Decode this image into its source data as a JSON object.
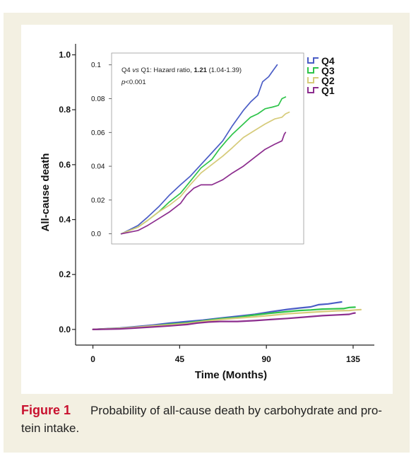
{
  "colors": {
    "background": "#f3f0e2",
    "panel": "#ffffff",
    "caption_label": "#c8102e"
  },
  "chart_data": {
    "type": "line",
    "xlabel": "Time (Months)",
    "ylabel": "All-cause death",
    "xlim": [
      -9,
      146
    ],
    "ylim": [
      -0.057,
      1.04
    ],
    "xticks": [
      0,
      45,
      90,
      135
    ],
    "xtick_labels": [
      "0",
      "45",
      "90",
      "135"
    ],
    "yticks": [
      0,
      0.2,
      0.4,
      0.6,
      0.8,
      1.0
    ],
    "ytick_labels": [
      "0.0",
      "0.2",
      "0.4",
      "0.6",
      "0.8",
      "1.0"
    ],
    "grid": false,
    "legend": "top-right",
    "series": [
      {
        "name": "Q4",
        "color": "#4b5dc6",
        "x": [
          0,
          14,
          22,
          31,
          40,
          49,
          57,
          66,
          75,
          84,
          92,
          101,
          107,
          113,
          117,
          122,
          126,
          129
        ],
        "y": [
          0,
          0.005,
          0.01,
          0.016,
          0.023,
          0.029,
          0.034,
          0.041,
          0.048,
          0.055,
          0.064,
          0.073,
          0.078,
          0.082,
          0.09,
          0.093,
          0.097,
          0.1
        ]
      },
      {
        "name": "Q3",
        "color": "#2ec44a",
        "x": [
          0,
          14,
          22,
          31,
          40,
          49,
          57,
          66,
          75,
          81,
          87,
          92,
          101,
          107,
          113,
          119,
          125,
          130,
          133,
          136
        ],
        "y": [
          0,
          0.004,
          0.008,
          0.013,
          0.019,
          0.024,
          0.031,
          0.039,
          0.044,
          0.05,
          0.055,
          0.059,
          0.065,
          0.069,
          0.071,
          0.074,
          0.075,
          0.076,
          0.08,
          0.081
        ]
      },
      {
        "name": "Q2",
        "color": "#d6cb7a",
        "x": [
          0,
          14,
          22,
          31,
          40,
          49,
          57,
          66,
          75,
          84,
          92,
          101,
          110,
          119,
          127,
          133,
          136,
          139
        ],
        "y": [
          0,
          0.004,
          0.008,
          0.013,
          0.017,
          0.022,
          0.029,
          0.036,
          0.041,
          0.046,
          0.051,
          0.057,
          0.061,
          0.065,
          0.068,
          0.069,
          0.071,
          0.072
        ]
      },
      {
        "name": "Q1",
        "color": "#8c2d8e",
        "x": [
          0,
          14,
          22,
          31,
          40,
          49,
          54,
          60,
          66,
          75,
          84,
          92,
          101,
          110,
          119,
          127,
          133,
          135,
          136
        ],
        "y": [
          0,
          0.002,
          0.005,
          0.009,
          0.013,
          0.018,
          0.023,
          0.027,
          0.029,
          0.029,
          0.032,
          0.036,
          0.04,
          0.045,
          0.05,
          0.053,
          0.055,
          0.059,
          0.06
        ]
      }
    ],
    "inset": {
      "xlim": [
        -8,
        151
      ],
      "ylim": [
        -0.006,
        0.107
      ],
      "yticks": [
        0,
        0.02,
        0.04,
        0.06,
        0.08,
        0.1
      ],
      "ytick_labels": [
        "0.0",
        "0.02",
        "0.04",
        "0.06",
        "0.08",
        "0.1"
      ],
      "annotation": {
        "group_a": "Q4",
        "vs": "vs",
        "comparison": "Q1: Hazard ratio,",
        "hazard_ratio": "1.21",
        "ci": "(1.04-1.39)",
        "p_symbol": "p",
        "p_value": "<0.001"
      }
    }
  },
  "caption": {
    "label": "Figure 1",
    "lines": [
      "Probability of all-cause death by carbohydrate and pro-",
      "tein intake."
    ]
  }
}
